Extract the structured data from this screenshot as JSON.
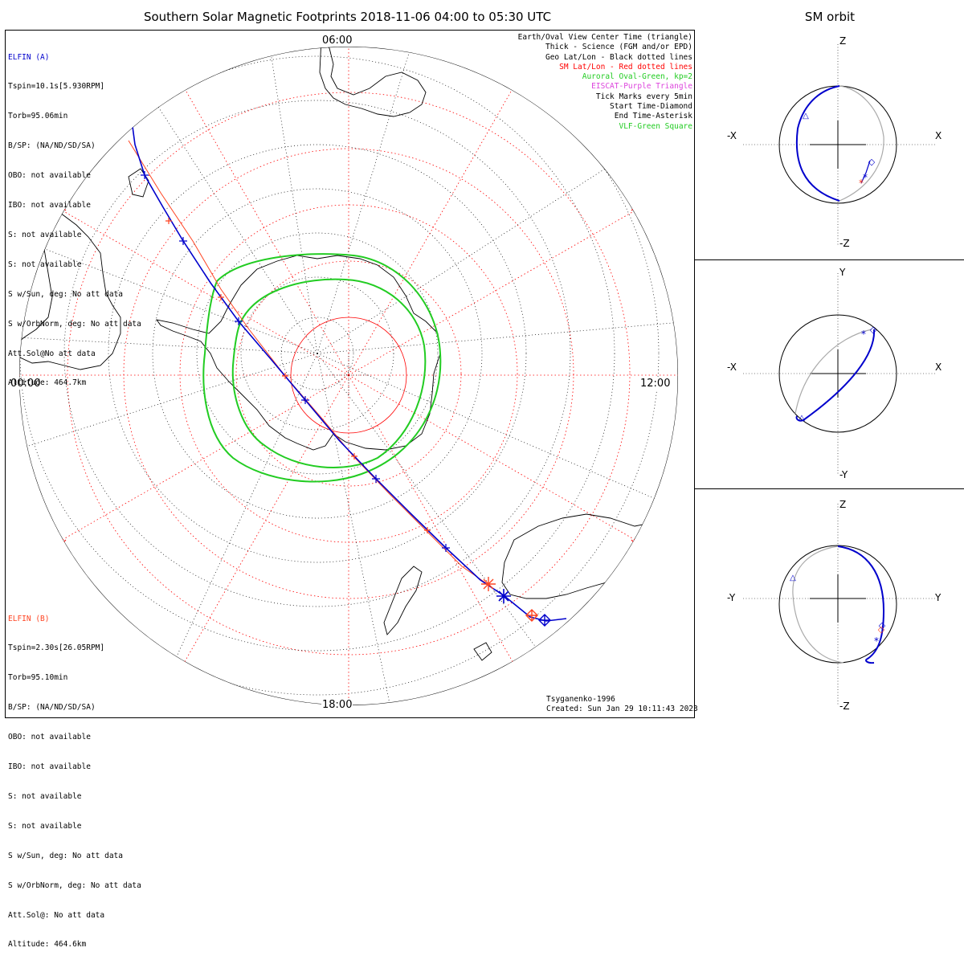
{
  "title": "Southern Solar Magnetic Footprints 2018-11-06 04:00 to 05:30 UTC",
  "orbit_title": "SM orbit",
  "hour_labels": {
    "top": "06:00",
    "left": "00:00",
    "right": "12:00",
    "bottom": "18:00"
  },
  "elfin_a": {
    "name": "ELFIN (A)",
    "color": "#0000cc",
    "lines": [
      "Tspin=10.1s[5.930RPM]",
      "Torb=95.06min",
      "B/SP: (NA/ND/SD/SA)",
      "OBO: not available",
      "IBO: not available",
      "S: not available",
      "S: not available",
      "S w/Sun, deg: No att data",
      "S w/OrbNorm, deg: No att data",
      "Att.Sol@No att data",
      "Altitude: 464.7km"
    ]
  },
  "elfin_b": {
    "name": "ELFIN (B)",
    "color": "#ff4422",
    "lines": [
      "Tspin=2.30s[26.05RPM]",
      "Torb=95.10min",
      "B/SP: (NA/ND/SD/SA)",
      "OBO: not available",
      "IBO: not available",
      "S: not available",
      "S: not available",
      "S w/Sun, deg: No att data",
      "S w/OrbNorm, deg: No att data",
      "Att.Sol@: No att data",
      "Altitude: 464.6km"
    ]
  },
  "legend": [
    {
      "text": "Earth/Oval View Center Time (triangle)",
      "color": "#000000"
    },
    {
      "text": "Thick - Science (FGM and/or EPD)",
      "color": "#000000"
    },
    {
      "text": "Geo Lat/Lon - Black dotted lines",
      "color": "#000000"
    },
    {
      "text": "SM Lat/Lon - Red dotted lines",
      "color": "#ff0000"
    },
    {
      "text": "Auroral Oval-Green, kp=2",
      "color": "#22cc22"
    },
    {
      "text": "EISCAT-Purple Triangle",
      "color": "#dd44dd"
    },
    {
      "text": "Tick Marks every 5min",
      "color": "#000000"
    },
    {
      "text": "Start Time-Diamond",
      "color": "#000000"
    },
    {
      "text": "End Time-Asterisk",
      "color": "#000000"
    },
    {
      "text": "VLF-Green Square",
      "color": "#22cc22"
    }
  ],
  "credit": {
    "model": "Tsyganenko-1996",
    "created": "Created: Sun Jan 29 10:11:43 2023"
  },
  "orbit_panels": [
    {
      "top": "Z",
      "bottom": "-Z",
      "left": "-X",
      "right": "X"
    },
    {
      "top": "Y",
      "bottom": "-Y",
      "left": "-X",
      "right": "X"
    },
    {
      "top": "Z",
      "bottom": "-Z",
      "left": "-Y",
      "right": "Y"
    }
  ],
  "colors": {
    "elfin_a": "#0000cc",
    "elfin_b": "#ff4422",
    "oval": "#22cc22",
    "sm_grid": "#ff0000",
    "geo_grid": "#000000",
    "orbit_back": "#aaaaaa"
  }
}
